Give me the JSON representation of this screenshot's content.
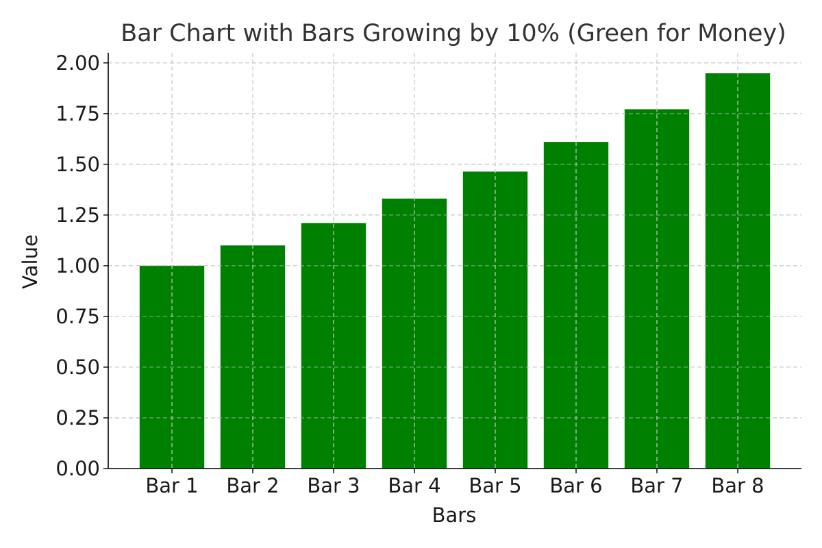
{
  "chart_data": {
    "type": "bar",
    "title": "Bar Chart with Bars Growing by 10% (Green for Money)",
    "xlabel": "Bars",
    "ylabel": "Value",
    "categories": [
      "Bar 1",
      "Bar 2",
      "Bar 3",
      "Bar 4",
      "Bar 5",
      "Bar 6",
      "Bar 7",
      "Bar 8"
    ],
    "values": [
      1.0,
      1.1,
      1.21,
      1.331,
      1.4641,
      1.61051,
      1.771561,
      1.9487171
    ],
    "ylim": [
      0,
      2.05
    ],
    "yticks": [
      "0.00",
      "0.25",
      "0.50",
      "0.75",
      "1.00",
      "1.25",
      "1.50",
      "1.75",
      "2.00"
    ],
    "grid": true,
    "bar_color": "#008000"
  }
}
